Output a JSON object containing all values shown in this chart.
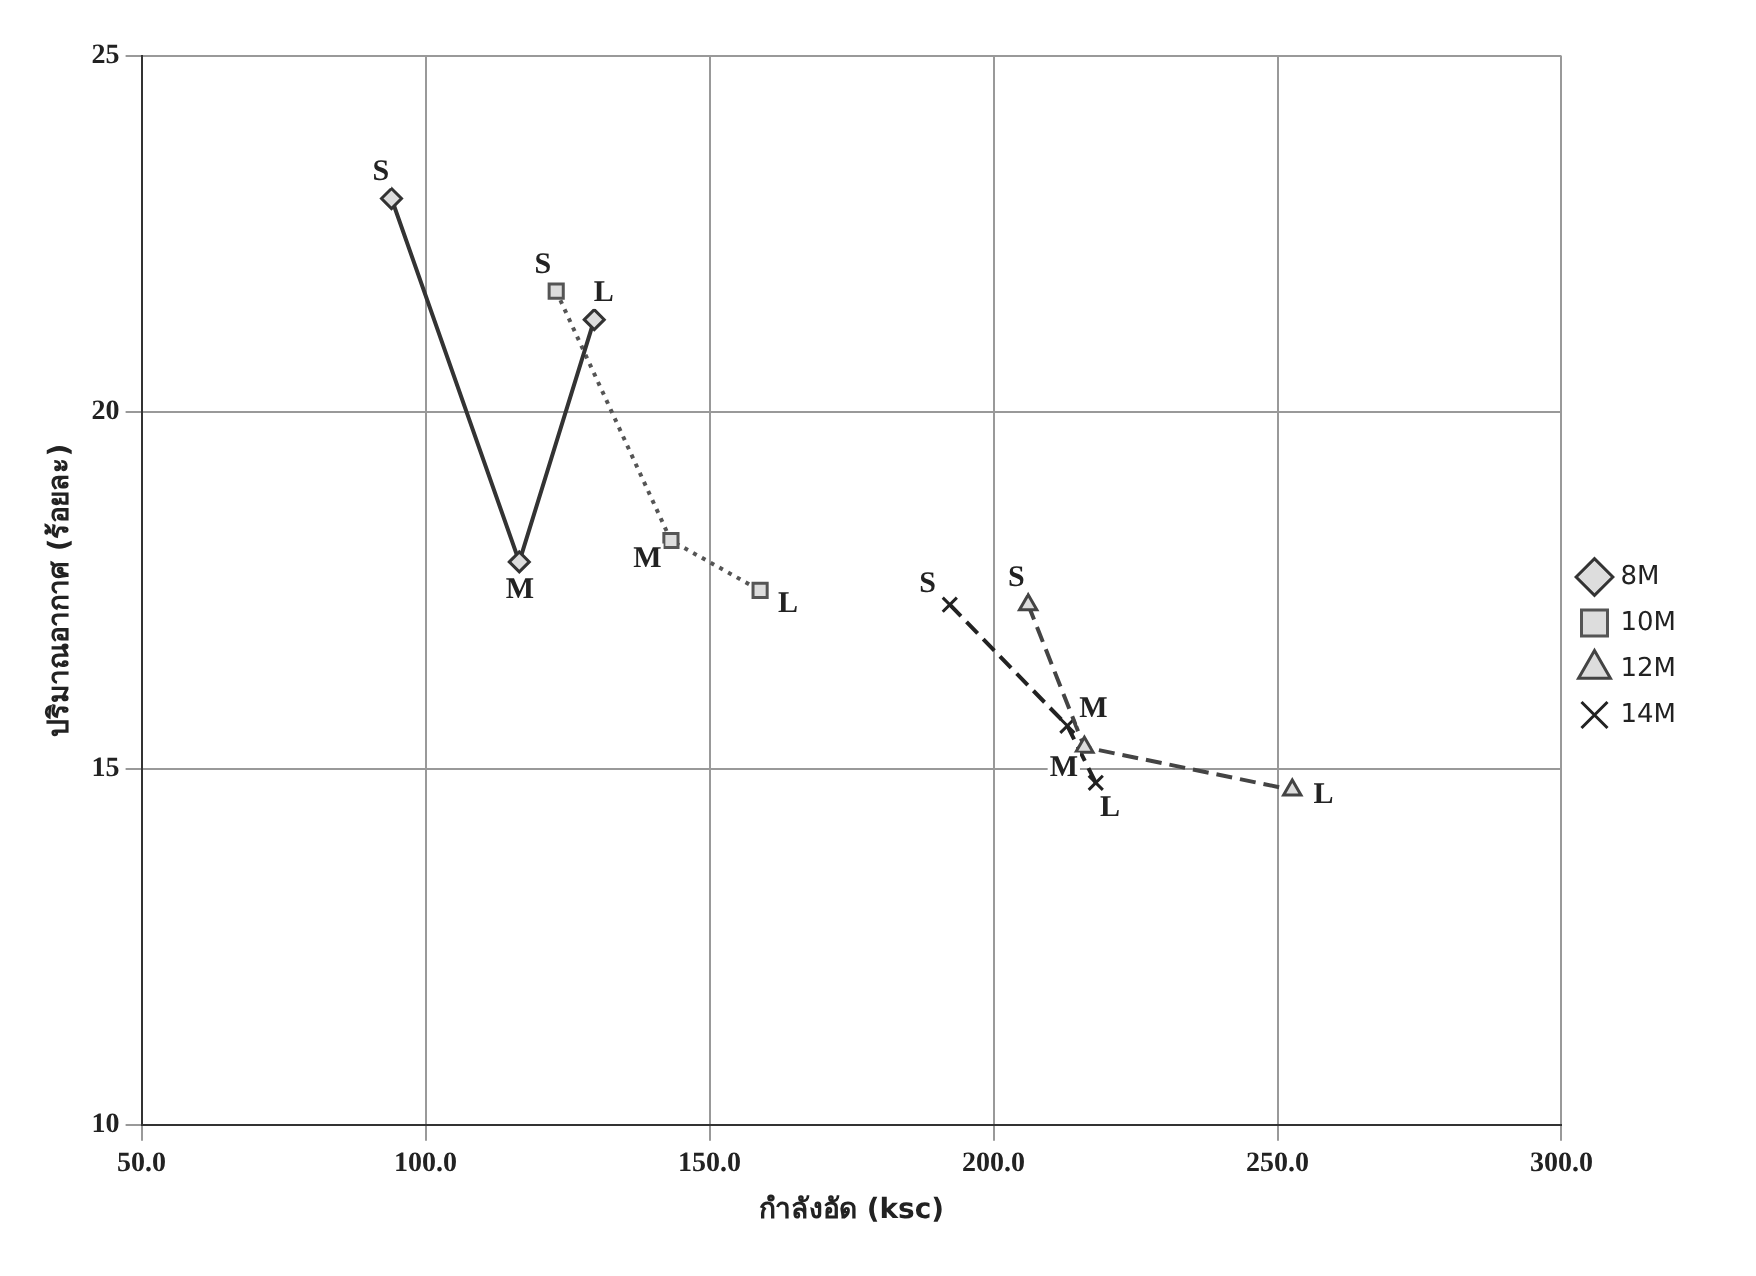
{
  "chart_data": {
    "type": "line",
    "xlabel": "กำลังอัด (ksc)",
    "ylabel": "ปริมาณอากาศ (ร้อยละ)",
    "xlim": [
      50,
      300
    ],
    "xticks": [
      {
        "value": 50,
        "label": "50.0"
      },
      {
        "value": 100,
        "label": "100.0"
      },
      {
        "value": 150,
        "label": "150.0"
      },
      {
        "value": 200,
        "label": "200.0"
      },
      {
        "value": 250,
        "label": "250.0"
      },
      {
        "value": 300,
        "label": "300.0"
      }
    ],
    "ylim": [
      10,
      25
    ],
    "yticks": [
      10,
      15,
      20,
      25
    ],
    "grid": true,
    "legend": "right",
    "series": [
      {
        "name": "8M",
        "color": "#333333",
        "x": [
          94,
          116.5,
          129.7
        ],
        "values": [
          23.0,
          17.9,
          21.3
        ],
        "marker": "diamond",
        "line_style": "solid"
      },
      {
        "name": "10M",
        "color": "#555555",
        "x": [
          123,
          143.2,
          158.9
        ],
        "values": [
          21.7,
          18.2,
          17.5
        ],
        "marker": "square",
        "line_style": "dotted"
      },
      {
        "name": "12M",
        "color": "#444444",
        "x": [
          206.1,
          216,
          252.6
        ],
        "values": [
          17.3,
          15.3,
          14.7
        ],
        "marker": "triangle",
        "line_style": "dashed"
      },
      {
        "name": "14M",
        "color": "#222222",
        "x": [
          192.3,
          213,
          218
        ],
        "values": [
          17.3,
          15.6,
          14.8
        ],
        "marker": "cross",
        "line_style": "dashed"
      }
    ],
    "annotations": [
      {
        "text": "S",
        "x": 94,
        "y": 23.0
      },
      {
        "text": "M",
        "x": 116.5,
        "y": 17.9
      },
      {
        "text": "L",
        "x": 129.7,
        "y": 21.3
      },
      {
        "text": "S",
        "x": 123,
        "y": 21.7
      },
      {
        "text": "M",
        "x": 143.2,
        "y": 18.2
      },
      {
        "text": "L",
        "x": 158.9,
        "y": 17.5
      },
      {
        "text": "S",
        "x": 206.1,
        "y": 17.3
      },
      {
        "text": "M",
        "x": 216,
        "y": 15.3
      },
      {
        "text": "L",
        "x": 252.6,
        "y": 14.7
      },
      {
        "text": "S",
        "x": 192.3,
        "y": 17.3
      },
      {
        "text": "M",
        "x": 213,
        "y": 15.6
      },
      {
        "text": "L",
        "x": 218,
        "y": 14.8
      }
    ]
  }
}
